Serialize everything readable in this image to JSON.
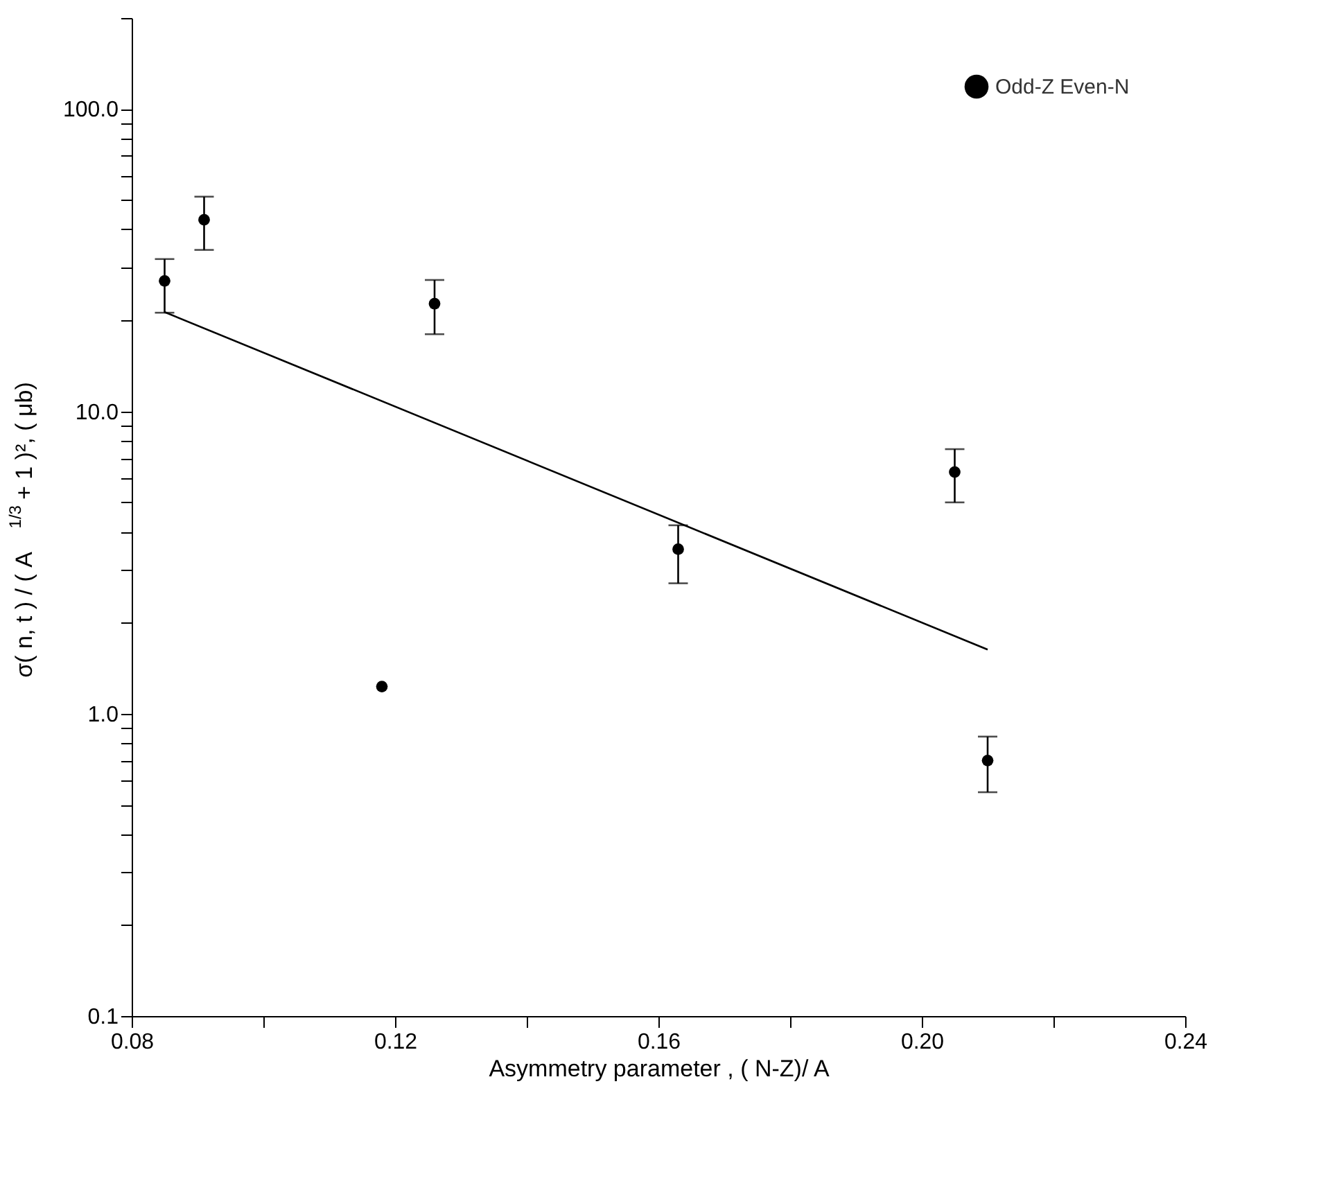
{
  "chart_data": {
    "type": "scatter",
    "xlabel": "Asymmetry parameter , ( N-Z)/ A",
    "ylabel": "σ( n, t )  / ( A$^{1/3}$ + 1 )², ( μb)",
    "xlim": [
      0.08,
      0.24
    ],
    "xticks": [
      {
        "value": 0.08,
        "label": "0.08"
      },
      {
        "value": 0.1,
        "label": null
      },
      {
        "value": 0.12,
        "label": "0.12"
      },
      {
        "value": 0.14,
        "label": null
      },
      {
        "value": 0.16,
        "label": "0.16"
      },
      {
        "value": 0.18,
        "label": null
      },
      {
        "value": 0.2,
        "label": "0.20"
      },
      {
        "value": 0.22,
        "label": null
      },
      {
        "value": 0.24,
        "label": "0.24"
      }
    ],
    "ylim": [
      0.1,
      200
    ],
    "yticks": [
      {
        "value": 0.1,
        "label": "0.1"
      },
      {
        "value": 0.2,
        "label": null
      },
      {
        "value": 0.3,
        "label": null
      },
      {
        "value": 0.4,
        "label": null
      },
      {
        "value": 0.5,
        "label": null
      },
      {
        "value": 0.6,
        "label": null
      },
      {
        "value": 0.7,
        "label": null
      },
      {
        "value": 0.8,
        "label": null
      },
      {
        "value": 0.9,
        "label": null
      },
      {
        "value": 1,
        "label": "1.0"
      },
      {
        "value": 2,
        "label": null
      },
      {
        "value": 3,
        "label": null
      },
      {
        "value": 4,
        "label": null
      },
      {
        "value": 5,
        "label": null
      },
      {
        "value": 6,
        "label": null
      },
      {
        "value": 7,
        "label": null
      },
      {
        "value": 8,
        "label": null
      },
      {
        "value": 9,
        "label": null
      },
      {
        "value": 10,
        "label": "10.0"
      },
      {
        "value": 20,
        "label": null
      },
      {
        "value": 30,
        "label": null
      },
      {
        "value": 40,
        "label": null
      },
      {
        "value": 50,
        "label": null
      },
      {
        "value": 60,
        "label": null
      },
      {
        "value": 70,
        "label": null
      },
      {
        "value": 80,
        "label": null
      },
      {
        "value": 90,
        "label": null
      },
      {
        "value": 100,
        "label": "100.0"
      },
      {
        "value": 200,
        "label": null
      }
    ],
    "log": "y",
    "grid": false,
    "legend": "top right",
    "series": [
      {
        "name": "Odd-Z Even-N",
        "marker": "circle",
        "color": "#000000",
        "x": [
          0.085,
          0.091,
          0.126,
          0.118,
          0.163,
          0.205,
          0.21
        ],
        "values": [
          27,
          43,
          22.7,
          1.23,
          3.5,
          6.3,
          0.7
        ],
        "errors": [
          [
            21.2,
            31.9
          ],
          [
            34.2,
            51.3
          ],
          [
            18.0,
            27.2
          ],
          null,
          [
            2.7,
            4.2
          ],
          [
            5.0,
            7.5
          ],
          [
            0.55,
            0.84
          ]
        ]
      },
      {
        "type": "line",
        "color": "#000000",
        "x": [
          0.085,
          0.21
        ],
        "values": [
          21.3,
          1.63
        ],
        "marker": "none",
        "line_style": "solid"
      }
    ]
  }
}
